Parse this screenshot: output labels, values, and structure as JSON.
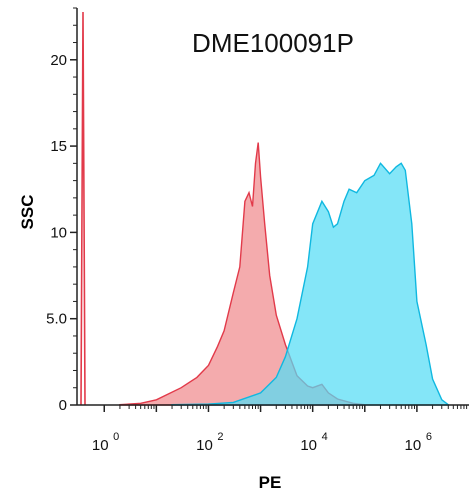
{
  "chart_data": {
    "type": "area",
    "title": "DME100091P",
    "xlabel": "PE",
    "ylabel": "SSC",
    "x_scale": "log10",
    "xlim": [
      0.3,
      10000000
    ],
    "ylim": [
      0,
      23
    ],
    "x_ticks": [
      {
        "value": 1,
        "base": "10",
        "exp": "0"
      },
      {
        "value": 100,
        "base": "10",
        "exp": "2"
      },
      {
        "value": 10000,
        "base": "10",
        "exp": "4"
      },
      {
        "value": 1000000,
        "base": "10",
        "exp": "6"
      }
    ],
    "y_ticks": [
      {
        "value": 0,
        "label": "0"
      },
      {
        "value": 5,
        "label": "5.0"
      },
      {
        "value": 10,
        "label": "10"
      },
      {
        "value": 15,
        "label": "15"
      },
      {
        "value": 20,
        "label": "20"
      }
    ],
    "grid": false,
    "legend": "none",
    "series": [
      {
        "color": "#f08a8e",
        "stroke": "#e23a4a",
        "x": [
          2,
          5,
          10,
          30,
          60,
          100,
          150,
          200,
          300,
          400,
          500,
          600,
          700,
          800,
          900,
          1000,
          1200,
          1500,
          2000,
          3000,
          5000,
          8000,
          10000,
          15000,
          20000,
          30000,
          60000,
          100000
        ],
        "y": [
          0.02,
          0.1,
          0.3,
          1.0,
          1.6,
          2.3,
          3.4,
          4.3,
          6.5,
          8.0,
          11.8,
          12.3,
          11.5,
          14.0,
          15.2,
          13.2,
          10.5,
          7.5,
          5.2,
          3.5,
          1.7,
          1.1,
          1.0,
          1.2,
          0.7,
          0.35,
          0.1,
          0.02
        ]
      },
      {
        "color": "#55dcf5",
        "stroke": "#10b8e0",
        "x": [
          20,
          100,
          300,
          1000,
          2000,
          3000,
          5000,
          8000,
          10000,
          15000,
          20000,
          25000,
          30000,
          40000,
          50000,
          70000,
          100000,
          150000,
          200000,
          300000,
          400000,
          500000,
          600000,
          800000,
          1000000,
          1500000,
          2000000,
          3000000,
          4000000
        ],
        "y": [
          0.02,
          0.05,
          0.15,
          0.7,
          1.6,
          2.8,
          5.0,
          8.0,
          10.5,
          11.8,
          11.2,
          10.3,
          10.5,
          11.8,
          12.5,
          12.3,
          13.0,
          13.3,
          14.0,
          13.4,
          13.8,
          14.0,
          13.6,
          10.5,
          6.0,
          3.5,
          1.5,
          0.3,
          0.02
        ]
      }
    ]
  }
}
